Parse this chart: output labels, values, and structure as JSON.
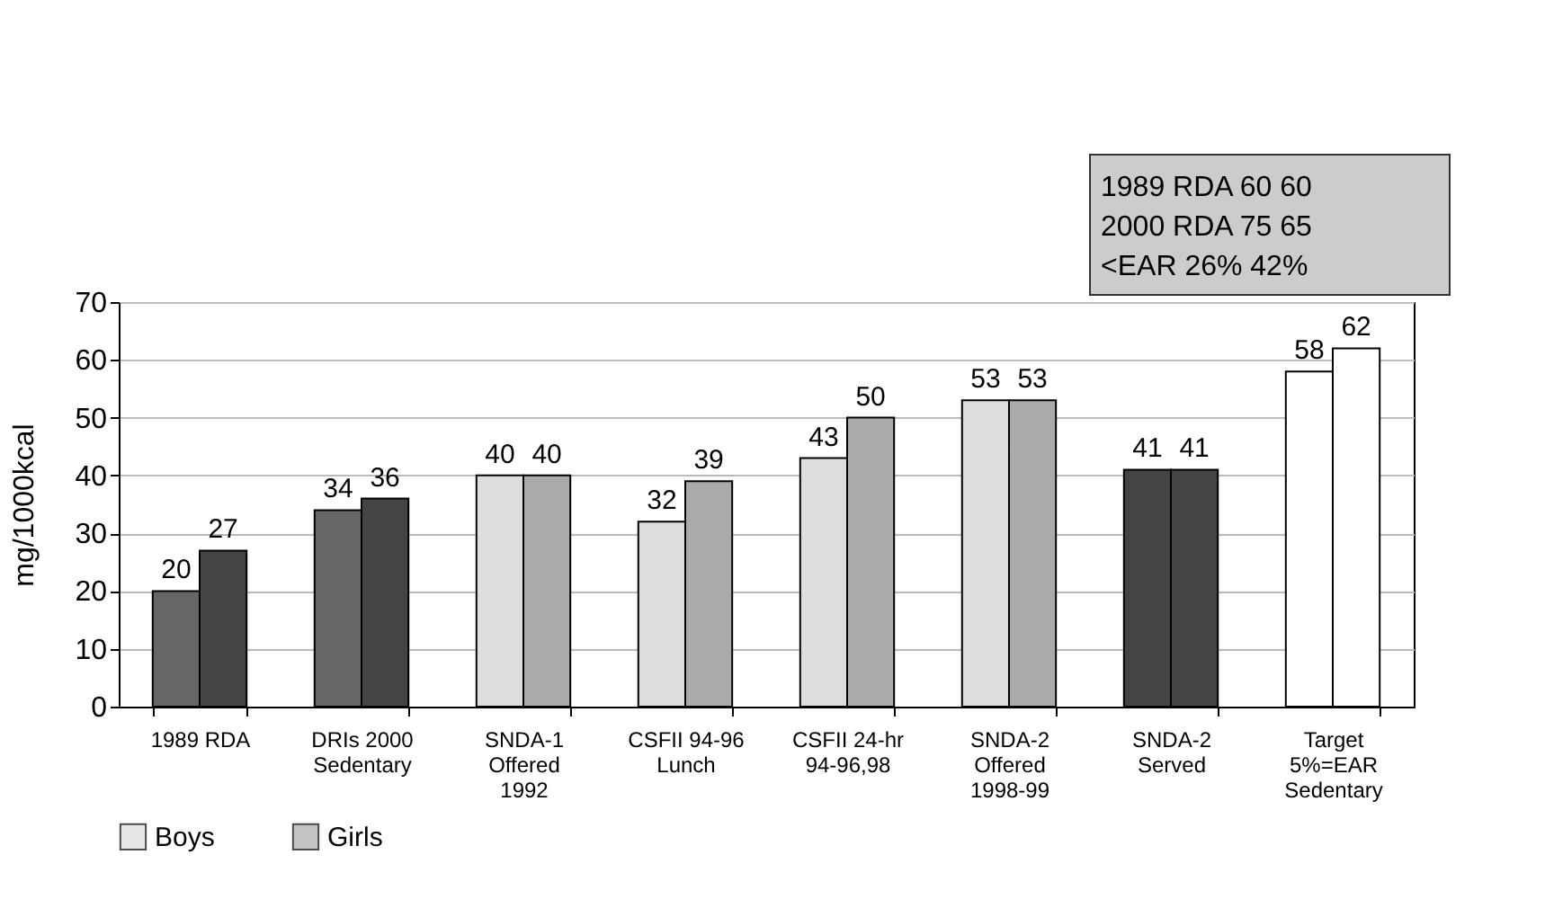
{
  "chart_data": {
    "type": "bar",
    "categories": [
      "1989 RDA",
      "DRIs 2000\nSedentary",
      "SNDA-1\nOffered\n1992",
      "CSFII 94-96\nLunch",
      "CSFII 24-hr\n94-96,98",
      "SNDA-2\nOffered\n1998-99",
      "SNDA-2\nServed",
      "Target\n5%=EAR\nSedentary"
    ],
    "series": [
      {
        "name": "Boys",
        "color": "#dddddd",
        "values": [
          20,
          34,
          40,
          32,
          43,
          53,
          41,
          58
        ],
        "colors": [
          "#666666",
          "#666666",
          "#dddddd",
          "#dddddd",
          "#dddddd",
          "#dddddd",
          "#444444",
          "#ffffff"
        ]
      },
      {
        "name": "Girls",
        "color": "#aaaaaa",
        "values": [
          27,
          36,
          40,
          39,
          50,
          53,
          41,
          62
        ],
        "colors": [
          "#444444",
          "#444444",
          "#aaaaaa",
          "#aaaaaa",
          "#aaaaaa",
          "#aaaaaa",
          "#444444",
          "#ffffff"
        ]
      }
    ],
    "ylabel": "mg/1000kcal",
    "ylim": [
      0,
      70
    ],
    "yticks": [
      0,
      10,
      20,
      30,
      40,
      50,
      60,
      70
    ],
    "data_labels": true,
    "grid": "y",
    "legend": "bottom",
    "annotations": [
      "1989 RDA 60   60",
      "2000 RDA  75   65",
      "<EAR       26%  42%"
    ]
  }
}
